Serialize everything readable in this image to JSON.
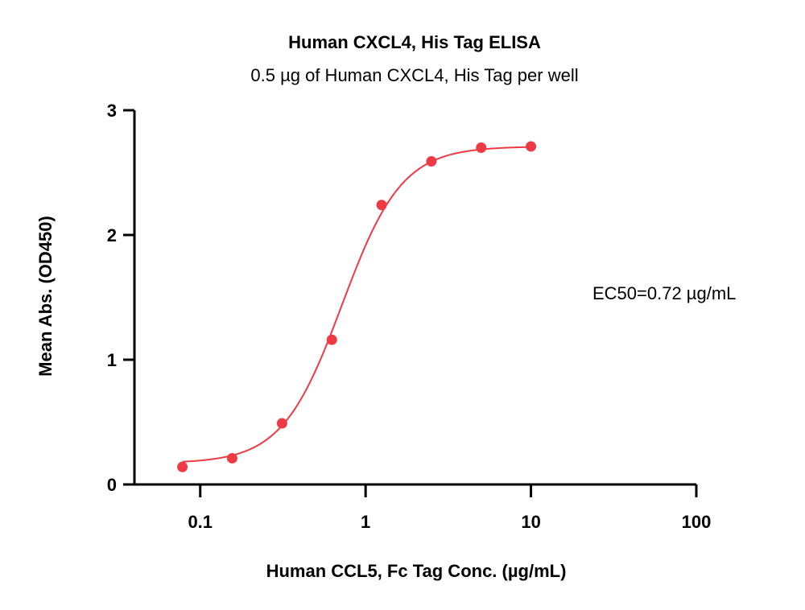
{
  "chart_data": {
    "type": "scatter",
    "title": "Human CXCL4, His Tag ELISA",
    "subtitle": "0.5 µg of Human CXCL4, His Tag per well",
    "xlabel": "Human CCL5, Fc Tag Conc. (µg/mL)",
    "ylabel": "Mean Abs. (OD450)",
    "x_scale": "log",
    "xlim": [
      0.04,
      100
    ],
    "ylim": [
      0,
      3
    ],
    "x_ticks": [
      0.1,
      1,
      10,
      100
    ],
    "x_tick_labels": [
      "0.1",
      "1",
      "10",
      "100"
    ],
    "y_ticks": [
      0,
      1,
      2,
      3
    ],
    "y_tick_labels": [
      "0",
      "1",
      "2",
      "3"
    ],
    "grid": false,
    "color": "#ee3a45",
    "series": [
      {
        "x": [
          0.078,
          0.156,
          0.3125,
          0.625,
          1.25,
          2.5,
          5,
          10
        ],
        "y": [
          0.14,
          0.21,
          0.49,
          1.16,
          2.24,
          2.59,
          2.7,
          2.71
        ]
      }
    ],
    "fit": {
      "model": "4PL",
      "bottom": 0.17,
      "top": 2.71,
      "ec50": 0.72,
      "hill": 2.4
    },
    "annotation": "EC50=0.72 µg/mL"
  }
}
